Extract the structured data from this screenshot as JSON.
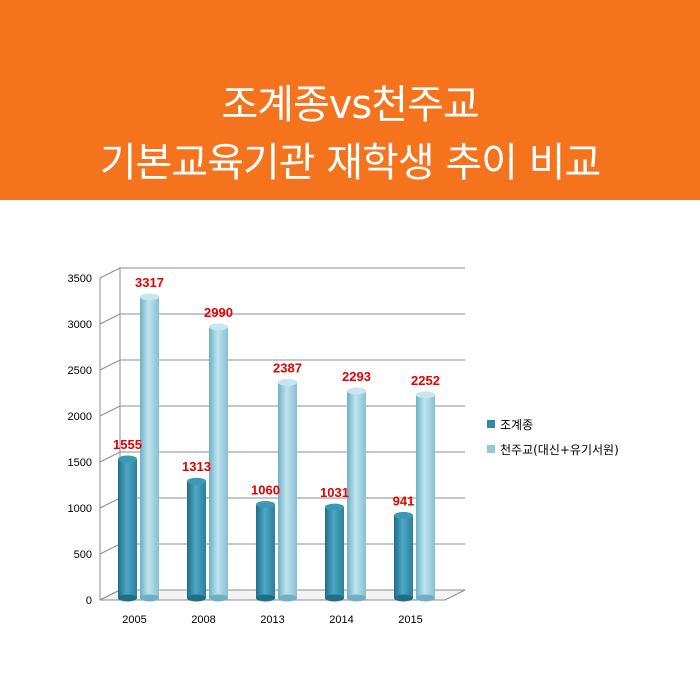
{
  "header": {
    "title_line1": "조계종vs천주교",
    "title_line2": "기본교육기관 재학생 추이 비교",
    "background": "#f5731c"
  },
  "chart_data": {
    "type": "bar",
    "title": "조계종vs천주교 기본교육기관 재학생 추이 비교",
    "categories": [
      "2005",
      "2008",
      "2013",
      "2014",
      "2015"
    ],
    "series": [
      {
        "name": "조계종",
        "values": [
          1555,
          1313,
          1060,
          1031,
          941
        ],
        "color": "#2f8aa8"
      },
      {
        "name": "천주교(대신+유기서원)",
        "values": [
          3317,
          2990,
          2387,
          2293,
          2252
        ],
        "color": "#8fc9db"
      }
    ],
    "ylim": [
      0,
      3500
    ],
    "yticks": [
      0,
      500,
      1000,
      1500,
      2000,
      2500,
      3000,
      3500
    ],
    "grid": true,
    "legend_position": "right",
    "data_label_color": "#e60000"
  }
}
